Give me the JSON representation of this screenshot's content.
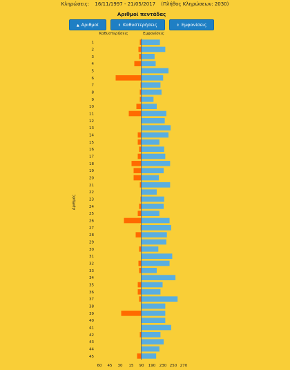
{
  "header": {
    "label": "Κληρώσεις:",
    "range": "16/11/1997 - 21/05/2017",
    "count": "(Πλήθος Κληρώσεων: 2030)"
  },
  "buttons": [
    {
      "label": "Αριθμοί",
      "icon": "caret-up-icon"
    },
    {
      "label": "Καθυστερήσεις",
      "icon": "sort-icon"
    },
    {
      "label": "Εμφανίσεις",
      "icon": "sort-icon"
    }
  ],
  "colors": {
    "background": "#f9ce37",
    "delays": "#ff6a00",
    "appearances": "#5aaee0",
    "button": "#1e7fc4"
  },
  "chart_data": {
    "type": "bar",
    "title": "Αριθμοί πεντάδας",
    "ylabel": "Αριθμός",
    "orientation": "horizontal-diverging",
    "categories": [
      "1",
      "2",
      "3",
      "4",
      "5",
      "6",
      "7",
      "8",
      "9",
      "10",
      "11",
      "12",
      "13",
      "14",
      "15",
      "16",
      "17",
      "18",
      "19",
      "20",
      "21",
      "22",
      "23",
      "24",
      "25",
      "26",
      "27",
      "28",
      "29",
      "30",
      "31",
      "32",
      "33",
      "34",
      "35",
      "36",
      "37",
      "38",
      "39",
      "40",
      "41",
      "42",
      "43",
      "44",
      "45"
    ],
    "series": [
      {
        "name": "Καθυστερήσεις",
        "side": "left",
        "values": [
          2,
          4,
          3,
          10,
          0,
          37,
          1,
          2,
          2,
          7,
          18,
          0,
          0,
          5,
          5,
          3,
          5,
          14,
          11,
          11,
          2,
          0,
          1,
          3,
          5,
          25,
          1,
          8,
          0,
          3,
          0,
          4,
          3,
          0,
          5,
          5,
          3,
          0,
          29,
          0,
          0,
          2,
          0,
          0,
          6
        ]
      },
      {
        "name": "Εμφανίσεις",
        "side": "right",
        "values": [
          225,
          235,
          215,
          217,
          241,
          231,
          226,
          228,
          213,
          219,
          237,
          234,
          245,
          241,
          224,
          233,
          235,
          244,
          232,
          223,
          244,
          219,
          233,
          232,
          224,
          243,
          246,
          238,
          237,
          222,
          248,
          243,
          219,
          254,
          230,
          226,
          258,
          235,
          235,
          235,
          246,
          226,
          232,
          224,
          218
        ]
      }
    ],
    "x_ticks": [
      "60",
      "45",
      "30",
      "15",
      "90",
      "190",
      "230",
      "250",
      "270"
    ],
    "xlim_left": [
      0,
      60
    ],
    "xlim_right": [
      190,
      270
    ],
    "grid": false,
    "legend": "top"
  }
}
